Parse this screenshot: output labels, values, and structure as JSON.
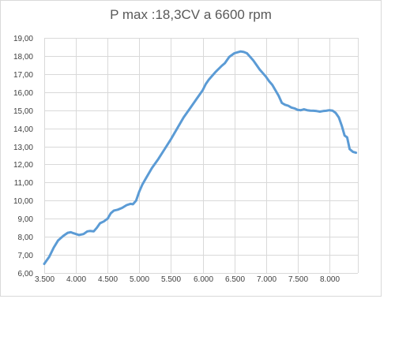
{
  "chart_data": {
    "type": "line",
    "title": "P max :18,3CV a 6600 rpm",
    "xlabel": "",
    "ylabel": "",
    "xlim": [
      3500,
      8450
    ],
    "ylim": [
      6,
      19
    ],
    "grid": true,
    "legend": "none",
    "line_color": "#5b9bd5",
    "x_ticks": [
      3500,
      4000,
      4500,
      5000,
      5500,
      6000,
      6500,
      7000,
      7500,
      8000
    ],
    "x_tick_labels": [
      "3.500",
      "4.000",
      "4.500",
      "5.000",
      "5.500",
      "6.000",
      "6.500",
      "7.000",
      "7.500",
      "8.000"
    ],
    "y_ticks": [
      6,
      7,
      8,
      9,
      10,
      11,
      12,
      13,
      14,
      15,
      16,
      17,
      18,
      19
    ],
    "y_tick_labels": [
      "6,00",
      "7,00",
      "8,00",
      "9,00",
      "10,00",
      "11,00",
      "12,00",
      "13,00",
      "14,00",
      "15,00",
      "16,00",
      "17,00",
      "18,00",
      "19,00"
    ],
    "series": [
      {
        "x": [
          3500,
          3580,
          3650,
          3720,
          3800,
          3870,
          3920,
          3960,
          4050,
          4120,
          4180,
          4220,
          4280,
          4330,
          4380,
          4440,
          4500,
          4550,
          4600,
          4660,
          4730,
          4800,
          4860,
          4900,
          4950,
          5000,
          5050,
          5100,
          5200,
          5300,
          5400,
          5500,
          5600,
          5700,
          5800,
          5900,
          6000,
          6050,
          6100,
          6200,
          6300,
          6350,
          6420,
          6500,
          6550,
          6600,
          6650,
          6700,
          6750,
          6800,
          6850,
          6900,
          6950,
          7000,
          7050,
          7100,
          7150,
          7200,
          7250,
          7300,
          7350,
          7400,
          7450,
          7500,
          7550,
          7600,
          7650,
          7700,
          7750,
          7800,
          7850,
          7900,
          7950,
          8000,
          8050,
          8100,
          8150,
          8200,
          8240,
          8280,
          8320,
          8370,
          8420
        ],
        "values": [
          6.5,
          6.9,
          7.4,
          7.8,
          8.05,
          8.22,
          8.25,
          8.2,
          8.1,
          8.15,
          8.3,
          8.32,
          8.3,
          8.5,
          8.75,
          8.85,
          9.0,
          9.3,
          9.45,
          9.5,
          9.6,
          9.75,
          9.82,
          9.8,
          10.0,
          10.5,
          10.9,
          11.2,
          11.8,
          12.3,
          12.85,
          13.4,
          14.0,
          14.6,
          15.1,
          15.6,
          16.1,
          16.45,
          16.7,
          17.1,
          17.45,
          17.6,
          17.95,
          18.15,
          18.2,
          18.25,
          18.22,
          18.15,
          17.95,
          17.75,
          17.5,
          17.25,
          17.05,
          16.85,
          16.6,
          16.4,
          16.1,
          15.8,
          15.4,
          15.3,
          15.25,
          15.15,
          15.1,
          15.02,
          15.0,
          15.05,
          15.0,
          14.98,
          14.97,
          14.95,
          14.92,
          14.95,
          14.97,
          15.0,
          14.98,
          14.85,
          14.6,
          14.1,
          13.6,
          13.5,
          12.85,
          12.7,
          12.65
        ]
      }
    ]
  }
}
